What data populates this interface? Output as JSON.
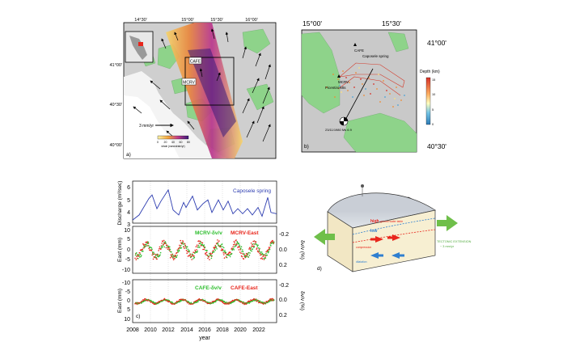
{
  "panel_a": {
    "label": "a)",
    "lon_ticks": [
      "14°30'",
      "15°00'",
      "15°30'",
      "16°00'"
    ],
    "lat_ticks": [
      "41°00'",
      "40°30'",
      "40°00'"
    ],
    "stations": [
      "CAFE",
      "MCRV"
    ],
    "scale_label": "3 mm/yr",
    "strain_colorbar_ticks": [
      "0",
      "20",
      "40",
      "60",
      "80"
    ],
    "strain_colorbar_label": "strain (nanostrain/yr)"
  },
  "panel_b": {
    "label": "b)",
    "lon_ticks": [
      "15°00'",
      "15°30'"
    ],
    "lat_ticks": [
      "41°00'",
      "40°30'"
    ],
    "labels": {
      "cafe": "CAFE",
      "spring": "Caposele spring",
      "mcrv": "MCRV",
      "picentini": "Picentini Mts"
    },
    "event_label": "23/11/1980 Ms 6.9",
    "depth_title": "Depth (km)",
    "depth_ticks": [
      "15",
      "10",
      "5",
      "0"
    ]
  },
  "panel_c": {
    "label": "c)",
    "discharge": {
      "ylabel": "Discharge (m³/sec)",
      "yticks": [
        "6",
        "5",
        "4",
        "3"
      ],
      "series": "Caposele spring"
    },
    "mcrv": {
      "ylabel": "East (mm)",
      "yticks_left": [
        "10",
        "5",
        "0",
        "-5",
        "-10"
      ],
      "yticks_right": [
        "-0.2",
        "0.0",
        "0.2"
      ],
      "ylabel_right": "δv/v (%)",
      "legend_green": "MCRV-δv/v",
      "legend_red": "MCRV-East"
    },
    "cafe": {
      "ylabel": "East (mm)",
      "yticks_left": [
        "-10",
        "-5",
        "0",
        "5",
        "10"
      ],
      "yticks_right": [
        "-0.2",
        "0.0",
        "0.2"
      ],
      "ylabel_right": "δv/v (%)",
      "legend_green": "CAFE-δv/v",
      "legend_red": "CAFE-East"
    },
    "xticks": [
      "2008",
      "2010",
      "2012",
      "2014",
      "2016",
      "2018",
      "2020",
      "2022"
    ],
    "xlabel": "year"
  },
  "panel_d": {
    "label": "d)",
    "labels": {
      "high": "high",
      "low": "low",
      "dilat1": "ground water table",
      "comp": "compression",
      "dilat2": "dilatation",
      "ext": "TECTONIC EXTENSION",
      "ext_rate": "~ 3 mm/yr"
    }
  },
  "colors": {
    "blue_line": "#2c3cb0",
    "red_points": "#e8261c",
    "green_points": "#2fbf2f",
    "map_green": "#8ed38a"
  }
}
